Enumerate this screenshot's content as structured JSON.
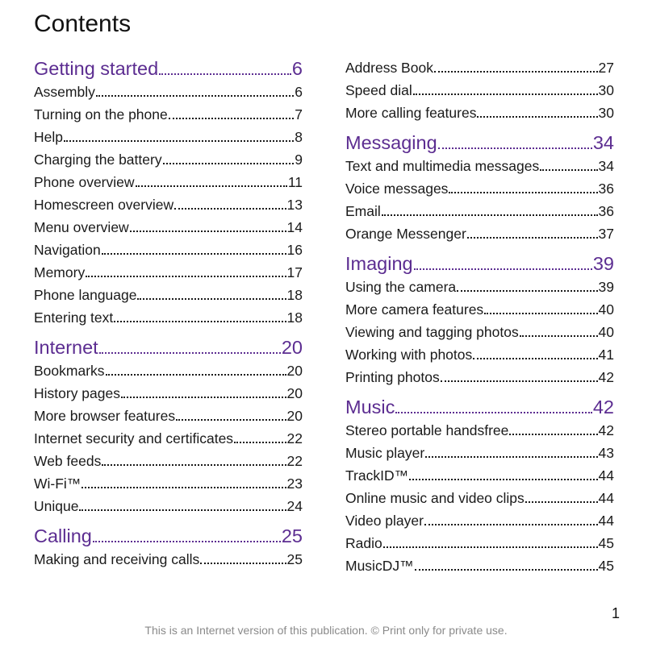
{
  "title": "Contents",
  "left": [
    {
      "type": "section",
      "label": "Getting started",
      "page": "6"
    },
    {
      "type": "item",
      "label": "Assembly",
      "page": "6"
    },
    {
      "type": "item",
      "label": "Turning on the phone",
      "page": "7"
    },
    {
      "type": "item",
      "label": "Help",
      "page": "8"
    },
    {
      "type": "item",
      "label": "Charging the battery",
      "page": "9"
    },
    {
      "type": "item",
      "label": "Phone overview",
      "page": "11"
    },
    {
      "type": "item",
      "label": "Homescreen overview",
      "page": "13"
    },
    {
      "type": "item",
      "label": "Menu overview",
      "page": "14"
    },
    {
      "type": "item",
      "label": "Navigation",
      "page": "16"
    },
    {
      "type": "item",
      "label": "Memory",
      "page": "17"
    },
    {
      "type": "item",
      "label": "Phone language",
      "page": "18"
    },
    {
      "type": "item",
      "label": "Entering text",
      "page": "18"
    },
    {
      "type": "section",
      "label": "Internet",
      "page": "20"
    },
    {
      "type": "item",
      "label": "Bookmarks",
      "page": "20"
    },
    {
      "type": "item",
      "label": "History pages",
      "page": "20"
    },
    {
      "type": "item",
      "label": "More browser features",
      "page": "20"
    },
    {
      "type": "item",
      "label": "Internet security and certificates",
      "page": "22"
    },
    {
      "type": "item",
      "label": "Web feeds",
      "page": "22"
    },
    {
      "type": "item",
      "label": "Wi-Fi™",
      "page": "23"
    },
    {
      "type": "item",
      "label": "Unique",
      "page": "24"
    },
    {
      "type": "section",
      "label": "Calling",
      "page": "25"
    },
    {
      "type": "item",
      "label": "Making and receiving calls",
      "page": "25"
    }
  ],
  "right": [
    {
      "type": "item",
      "label": "Address Book ",
      "page": "27"
    },
    {
      "type": "item",
      "label": "Speed dial",
      "page": "30"
    },
    {
      "type": "item",
      "label": "More calling features",
      "page": "30"
    },
    {
      "type": "section",
      "label": "Messaging",
      "page": "34"
    },
    {
      "type": "item",
      "label": "Text and multimedia messages",
      "page": "34"
    },
    {
      "type": "item",
      "label": "Voice messages",
      "page": "36"
    },
    {
      "type": "item",
      "label": "Email",
      "page": "36"
    },
    {
      "type": "item",
      "label": "Orange Messenger ",
      "page": "37"
    },
    {
      "type": "section",
      "label": "Imaging ",
      "page": "39"
    },
    {
      "type": "item",
      "label": "Using the camera",
      "page": "39"
    },
    {
      "type": "item",
      "label": "More camera features",
      "page": "40"
    },
    {
      "type": "item",
      "label": "Viewing and tagging photos",
      "page": "40"
    },
    {
      "type": "item",
      "label": "Working with photos",
      "page": "41"
    },
    {
      "type": "item",
      "label": "Printing photos",
      "page": "42"
    },
    {
      "type": "section",
      "label": "Music ",
      "page": "42"
    },
    {
      "type": "item",
      "label": "Stereo portable handsfree",
      "page": "42"
    },
    {
      "type": "item",
      "label": "Music player",
      "page": "43"
    },
    {
      "type": "item",
      "label": "TrackID™",
      "page": "44"
    },
    {
      "type": "item",
      "label": "Online music and video clips",
      "page": "44"
    },
    {
      "type": "item",
      "label": "Video player",
      "page": "44"
    },
    {
      "type": "item",
      "label": "Radio",
      "page": "45"
    },
    {
      "type": "item",
      "label": "MusicDJ™",
      "page": "45"
    }
  ],
  "page_number": "1",
  "footer": "This is an Internet version of this publication. © Print only for private use.",
  "colors": {
    "section": "#5c2d91",
    "text": "#1a1a1a",
    "footer": "#8a8a8a"
  }
}
